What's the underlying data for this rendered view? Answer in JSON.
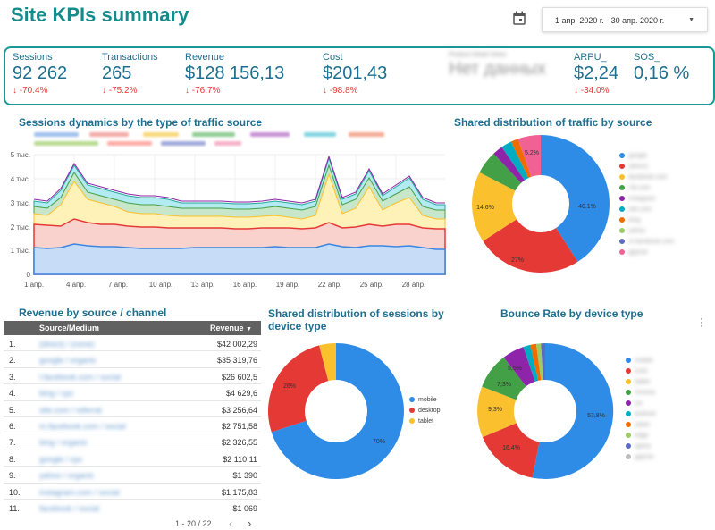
{
  "header": {
    "title": "Site KPIs summary",
    "date_range": "1 апр. 2020 г. - 30 апр. 2020 г."
  },
  "kpis": [
    {
      "label": "Sessions",
      "value": "92 262",
      "delta": "-70.4%"
    },
    {
      "label": "Transactions",
      "value": "265",
      "delta": "-75.2%"
    },
    {
      "label": "Revenue",
      "value": "$128 156,13",
      "delta": "-76.7%"
    },
    {
      "label": "Cost",
      "value": "$201,43",
      "delta": "-98.8%"
    },
    {
      "label": "Product Detail Views",
      "value": "Нет данных",
      "delta": ""
    },
    {
      "label": "ARPU_",
      "value": "$2,24",
      "delta": "-34.0%"
    },
    {
      "label": "SOS_",
      "value": "0,16 %",
      "delta": ""
    }
  ],
  "sessions_chart": {
    "title": "Sessions dynamics by the type of traffic source",
    "y_ticks": [
      "5 тыс.",
      "4 тыс.",
      "3 тыс.",
      "2 тыс.",
      "1 тыс.",
      "0"
    ],
    "x_ticks": [
      "1 апр.",
      "4 апр.",
      "7 апр.",
      "10 апр.",
      "13 апр.",
      "16 апр.",
      "19 апр.",
      "22 апр.",
      "25 апр.",
      "28 апр."
    ]
  },
  "traffic_pie": {
    "title": "Shared distribution of traffic by source",
    "labels": [
      "40.1%",
      "27%",
      "14.6%",
      "5.2%"
    ]
  },
  "revenue_table": {
    "title": "Revenue by source / channel",
    "col_source": "Source/Medium",
    "col_revenue": "Revenue",
    "sort_icon": "arrow-down",
    "rows": [
      {
        "n": "1.",
        "source": "(direct) / (none)",
        "revenue": "$42 002,29"
      },
      {
        "n": "2.",
        "source": "google / organic",
        "revenue": "$35 319,76"
      },
      {
        "n": "3.",
        "source": "l.facebook.com / social",
        "revenue": "$26 602,5"
      },
      {
        "n": "4.",
        "source": "bing / cpc",
        "revenue": "$4 629,6"
      },
      {
        "n": "5.",
        "source": "site.com / referral",
        "revenue": "$3 256,64"
      },
      {
        "n": "6.",
        "source": "m.facebook.com / social",
        "revenue": "$2 751,58"
      },
      {
        "n": "7.",
        "source": "bing / organic",
        "revenue": "$2 326,55"
      },
      {
        "n": "8.",
        "source": "google / cpc",
        "revenue": "$2 110,11"
      },
      {
        "n": "9.",
        "source": "yahoo / organic",
        "revenue": "$1 390"
      },
      {
        "n": "10.",
        "source": "instagram.com / social",
        "revenue": "$1 175,83"
      },
      {
        "n": "11.",
        "source": "facebook / social",
        "revenue": "$1 069"
      }
    ],
    "pager": "1 - 20 / 22"
  },
  "device_pie": {
    "title": "Shared distribution of sessions by device type",
    "labels": [
      "70%",
      "26%"
    ],
    "legend": [
      "mobile",
      "desktop",
      "tablet"
    ]
  },
  "bounce_pie": {
    "title": "Bounce Rate by device type",
    "labels": [
      "53,8%",
      "16,4%",
      "9,3%",
      "7,3%",
      "5,5%"
    ]
  },
  "colors": {
    "accent": "#168b8b",
    "delta_negative": "#e53935",
    "blue": "#2e8ce6",
    "red": "#e53935",
    "yellow": "#fbc02d",
    "green": "#43a047",
    "purple": "#8e24aa",
    "teal": "#00acc1",
    "pink": "#f06292"
  }
}
